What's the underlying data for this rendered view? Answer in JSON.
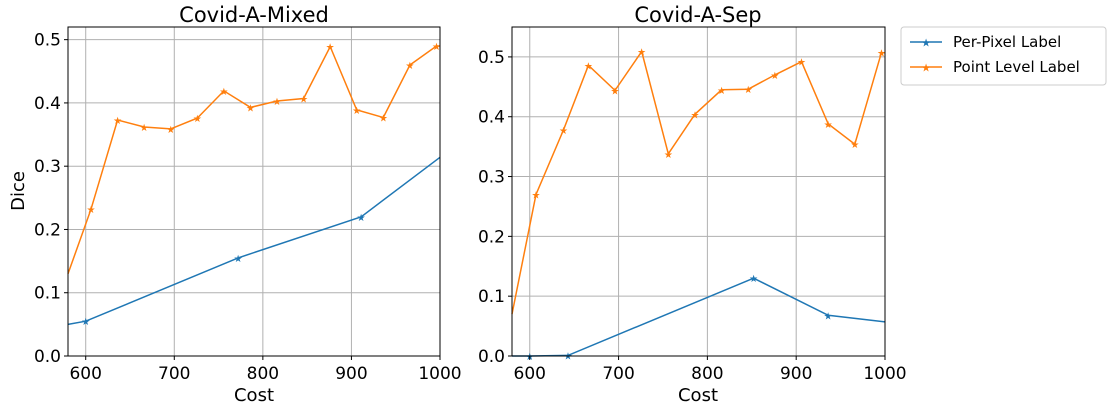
{
  "chart_data": [
    {
      "type": "line",
      "title": "Covid-A-Mixed",
      "xlabel": "Cost",
      "ylabel": "Dice",
      "xlim": [
        580,
        1000
      ],
      "ylim": [
        0.0,
        0.52
      ],
      "xticks": [
        "600",
        "700",
        "800",
        "900",
        "1000"
      ],
      "yticks": [
        "0.0",
        "0.1",
        "0.2",
        "0.3",
        "0.4",
        "0.5"
      ],
      "grid": true,
      "series": [
        {
          "name": "Per-Pixel Label",
          "color": "#1f77b4",
          "x": [
            580,
            600,
            772,
            911,
            1000
          ],
          "y": [
            0.05,
            0.055,
            0.155,
            0.22,
            0.314
          ]
        },
        {
          "name": "Point Level Label",
          "color": "#ff7f0e",
          "x": [
            580,
            606,
            636,
            666,
            696,
            726,
            756,
            786,
            816,
            846,
            876,
            906,
            936,
            966,
            996,
            1000
          ],
          "y": [
            0.13,
            0.232,
            0.373,
            0.362,
            0.359,
            0.376,
            0.419,
            0.393,
            0.403,
            0.407,
            0.489,
            0.389,
            0.377,
            0.46,
            0.49,
            0.49
          ]
        }
      ]
    },
    {
      "type": "line",
      "title": "Covid-A-Sep",
      "xlabel": "Cost",
      "ylabel": "",
      "xlim": [
        580,
        1000
      ],
      "ylim": [
        0.0,
        0.55
      ],
      "xticks": [
        "600",
        "700",
        "800",
        "900",
        "1000"
      ],
      "yticks": [
        "0.0",
        "0.1",
        "0.2",
        "0.3",
        "0.4",
        "0.5"
      ],
      "grid": true,
      "series": [
        {
          "name": "Per-Pixel Label",
          "color": "#1f77b4",
          "x": [
            580,
            600,
            643,
            852,
            936,
            1000
          ],
          "y": [
            0.0,
            0.0,
            0.001,
            0.13,
            0.068,
            0.057
          ]
        },
        {
          "name": "Point Level Label",
          "color": "#ff7f0e",
          "x": [
            580,
            607,
            638,
            666,
            696,
            726,
            756,
            786,
            816,
            846,
            876,
            906,
            936,
            966,
            996,
            1000
          ],
          "y": [
            0.07,
            0.27,
            0.378,
            0.486,
            0.444,
            0.509,
            0.338,
            0.404,
            0.445,
            0.446,
            0.47,
            0.492,
            0.388,
            0.354,
            0.507,
            0.507
          ]
        }
      ]
    }
  ],
  "legend": {
    "placement": "outside-right",
    "entries": [
      "Per-Pixel Label",
      "Point Level Label"
    ]
  }
}
